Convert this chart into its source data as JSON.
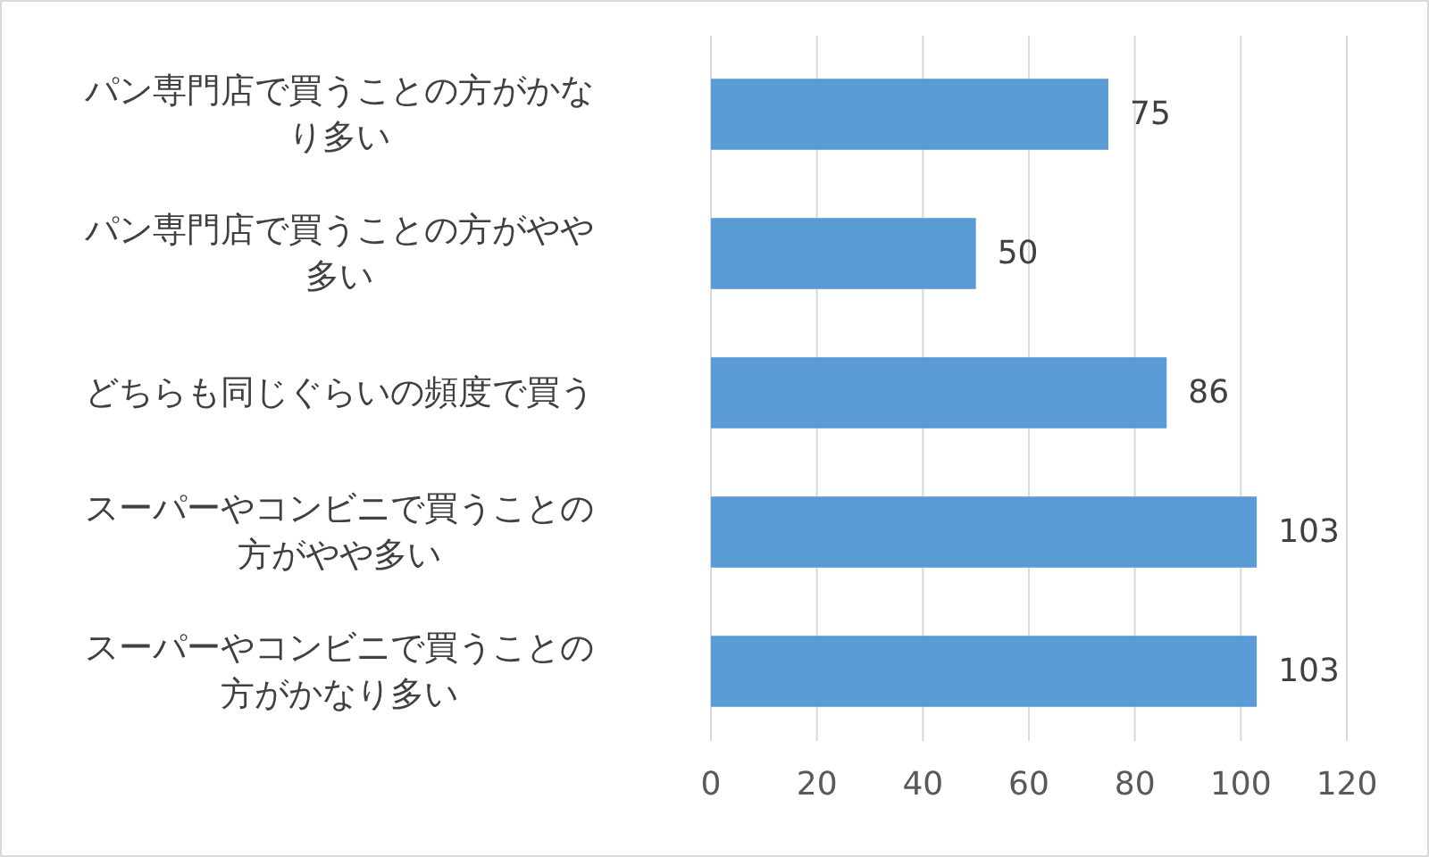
{
  "chart_data": {
    "type": "bar",
    "orientation": "horizontal",
    "categories": [
      "パン専門店で買うことの方がかなり多い",
      "パン専門店で買うことの方がやや多い",
      "どちらも同じぐらいの頻度で買う",
      "スーパーやコンビニで買うことの方がやや多い",
      "スーパーやコンビニで買うことの方がかなり多い"
    ],
    "values": [
      75,
      50,
      86,
      103,
      103
    ],
    "color": "#5b9bd5",
    "xlim": [
      0,
      120
    ],
    "xticks": [
      0,
      20,
      40,
      60,
      80,
      100,
      120
    ],
    "grid": "x",
    "data_labels": true
  }
}
